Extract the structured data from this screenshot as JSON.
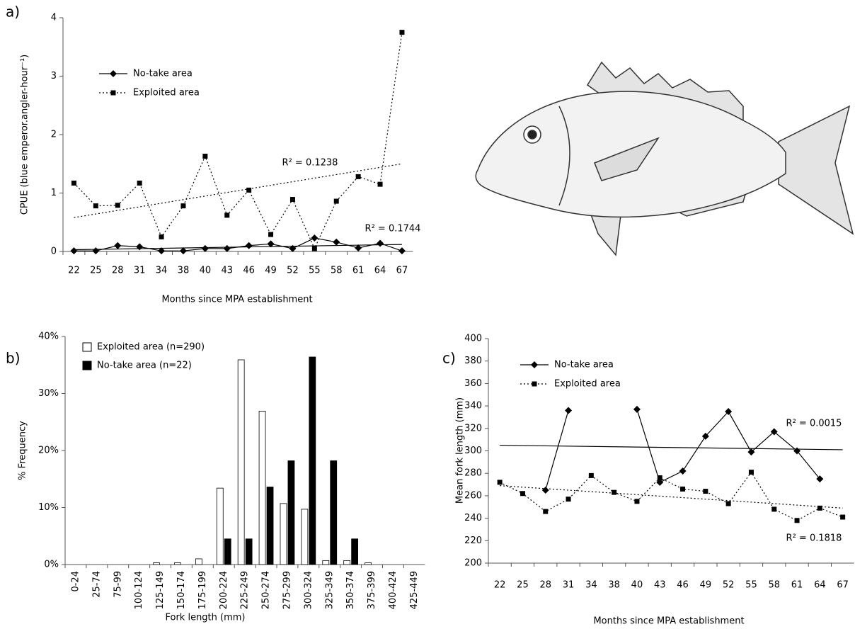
{
  "chart_data": [
    {
      "type": "line",
      "panel": "a)",
      "x_label": "Months since MPA establishment",
      "y_label": "CPUE (blue emperor.angler-hour⁻¹)",
      "categories": [
        22,
        25,
        28,
        31,
        34,
        38,
        40,
        43,
        46,
        49,
        52,
        55,
        58,
        61,
        64,
        67
      ],
      "series": [
        {
          "name": "No-take area",
          "color": "#000000",
          "marker": "diamond",
          "line_style": "solid",
          "values": [
            0.01,
            0.01,
            0.1,
            0.08,
            0.01,
            0.01,
            0.05,
            0.05,
            0.1,
            0.13,
            0.05,
            0.23,
            0.16,
            0.06,
            0.14,
            0.01
          ],
          "trend": [
            0.03,
            0.12
          ],
          "trend_label": "R² = 0.1744"
        },
        {
          "name": "Exploited area",
          "color": "#000000",
          "marker": "square",
          "line_style": "dotted",
          "values": [
            1.17,
            0.78,
            0.79,
            1.17,
            0.25,
            0.78,
            1.63,
            0.62,
            1.05,
            0.29,
            0.89,
            0.05,
            0.86,
            1.28,
            1.15,
            3.75
          ],
          "trend": [
            0.58,
            1.5
          ],
          "trend_label": "R² = 0.1238"
        }
      ],
      "ylim": [
        0,
        4
      ],
      "yticks": [
        0,
        1,
        2,
        3,
        4
      ]
    },
    {
      "type": "bar",
      "panel": "b)",
      "x_label": "Fork length (mm)",
      "y_label": "% Frequency",
      "categories": [
        "0-24",
        "25-74",
        "75-99",
        "100-124",
        "125-149",
        "150-174",
        "175-199",
        "200-224",
        "225-249",
        "250-274",
        "275-299",
        "300-324",
        "325-349",
        "350-374",
        "375-399",
        "400-424",
        "425-449"
      ],
      "series": [
        {
          "name": "Exploited area (n=290)",
          "color": "#ffffff",
          "values": [
            0,
            0,
            0,
            0,
            0.3,
            0.3,
            1.0,
            13.4,
            35.9,
            26.9,
            10.7,
            9.7,
            0.7,
            0.7,
            0.3,
            0,
            0
          ]
        },
        {
          "name": "No-take area (n=22)",
          "color": "#000000",
          "values": [
            0,
            0,
            0,
            0,
            0,
            0,
            0,
            4.5,
            4.5,
            13.6,
            18.2,
            36.4,
            18.2,
            4.5,
            0,
            0,
            0
          ]
        }
      ],
      "ylim": [
        0,
        40
      ],
      "yticks": [
        {
          "value": 0,
          "label": "0%"
        },
        {
          "value": 10,
          "label": "10%"
        },
        {
          "value": 20,
          "label": "20%"
        },
        {
          "value": 30,
          "label": "30%"
        },
        {
          "value": 40,
          "label": "40%"
        }
      ]
    },
    {
      "type": "line",
      "panel": "c)",
      "x_label": "Months since MPA establishment",
      "y_label": "Mean fork length (mm)",
      "categories": [
        22,
        25,
        28,
        31,
        34,
        38,
        40,
        43,
        46,
        49,
        52,
        55,
        58,
        61,
        64,
        67
      ],
      "series": [
        {
          "name": "No-take area",
          "color": "#000000",
          "marker": "diamond",
          "line_style": "solid",
          "values": [
            null,
            null,
            265,
            336,
            null,
            null,
            337,
            272,
            282,
            313,
            335,
            299,
            317,
            300,
            275,
            null
          ],
          "trend": [
            305,
            301
          ],
          "trend_label": "R² = 0.0015"
        },
        {
          "name": "Exploited area",
          "color": "#000000",
          "marker": "square",
          "line_style": "dotted",
          "values": [
            272,
            262,
            246,
            257,
            278,
            263,
            255,
            276,
            266,
            264,
            253,
            281,
            248,
            238,
            249,
            241
          ],
          "trend": [
            269,
            249
          ],
          "trend_label": "R² = 0.1818"
        }
      ],
      "ylim": [
        200,
        400
      ],
      "yticks": [
        200,
        220,
        240,
        260,
        280,
        300,
        320,
        340,
        360,
        380,
        400
      ]
    }
  ]
}
